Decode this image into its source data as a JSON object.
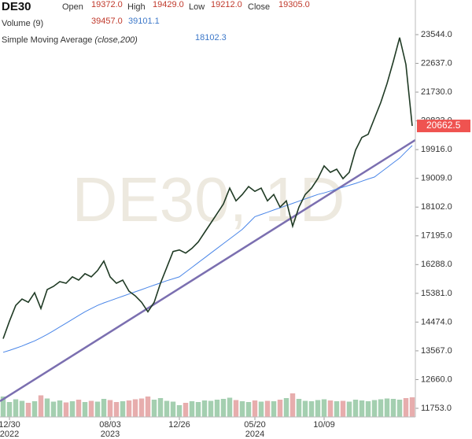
{
  "chart_data": {
    "type": "line",
    "title": "DE30",
    "watermark": "DE30, 1D",
    "ohlc_legend": [
      {
        "name": "Open",
        "value": 19372.0,
        "value_label": "19372.0"
      },
      {
        "name": "High",
        "value": 19429.0,
        "value_label": "19429.0"
      },
      {
        "name": "Low",
        "value": 19212.0,
        "value_label": "19212.0"
      },
      {
        "name": "Close",
        "value": 19305.0,
        "value_label": "19305.0"
      }
    ],
    "volume_legend": {
      "name": "Volume (9)",
      "values": [
        39457.0,
        39101.1
      ],
      "value_labels": [
        "39457.0",
        "39101.1"
      ]
    },
    "sma_legend": {
      "name_prefix": "Simple Moving Average ",
      "name_params": "(close,200)",
      "value": 18102.3
    },
    "categories": [
      null,
      "12/30",
      null,
      null,
      null,
      null,
      null,
      null,
      null,
      null,
      null,
      null,
      null,
      null,
      null,
      null,
      null,
      "08/03",
      null,
      null,
      null,
      null,
      null,
      null,
      null,
      null,
      null,
      null,
      "12/26",
      null,
      null,
      null,
      null,
      null,
      null,
      null,
      null,
      null,
      null,
      null,
      "05/20",
      null,
      null,
      null,
      null,
      null,
      null,
      null,
      null,
      null,
      null,
      "10/09",
      null,
      null,
      null,
      null,
      null,
      null,
      null,
      null,
      null,
      null,
      null,
      null,
      null,
      null
    ],
    "years": [
      null,
      "2022",
      null,
      null,
      null,
      null,
      null,
      null,
      null,
      null,
      null,
      null,
      null,
      null,
      null,
      null,
      null,
      "2023",
      null,
      null,
      null,
      null,
      null,
      null,
      null,
      null,
      null,
      null,
      null,
      null,
      null,
      null,
      null,
      null,
      null,
      null,
      null,
      null,
      null,
      null,
      "2024",
      null,
      null,
      null,
      null,
      null,
      null,
      null,
      null,
      null,
      null,
      null,
      null,
      null,
      null,
      null,
      null,
      null,
      null,
      null,
      null,
      null,
      null,
      null,
      null,
      null
    ],
    "series": [
      {
        "name": "Close",
        "color": "#1f3a24",
        "values": [
          13950,
          14500,
          15000,
          15200,
          15100,
          15400,
          14900,
          15500,
          15600,
          15750,
          15700,
          15900,
          15800,
          16000,
          15900,
          16100,
          16400,
          15900,
          15700,
          15800,
          15450,
          15300,
          15100,
          14800,
          15100,
          15700,
          16200,
          16700,
          16750,
          16650,
          16800,
          17000,
          17300,
          17600,
          17900,
          18200,
          18700,
          18300,
          18500,
          18750,
          18600,
          18700,
          18300,
          18500,
          18100,
          18300,
          17500,
          18100,
          18500,
          18700,
          19000,
          19400,
          19200,
          19300,
          19000,
          19200,
          19900,
          20300,
          20400,
          20900,
          21400,
          22000,
          22700,
          23450,
          22600,
          20662.5
        ]
      },
      {
        "name": "SMA",
        "color": "#4a86e8",
        "values": [
          13520,
          13580,
          13650,
          13720,
          13800,
          13880,
          13980,
          14085,
          14200,
          14320,
          14440,
          14560,
          14680,
          14800,
          14900,
          15000,
          15080,
          15150,
          15220,
          15290,
          15360,
          15430,
          15500,
          15570,
          15640,
          15710,
          15780,
          15840,
          15900,
          16050,
          16200,
          16350,
          16500,
          16650,
          16800,
          16950,
          17100,
          17250,
          17400,
          17600,
          17800,
          17870,
          17940,
          18010,
          18080,
          18150,
          18220,
          18290,
          18360,
          18430,
          18500,
          18550,
          18610,
          18670,
          18730,
          18790,
          18850,
          18920,
          18990,
          19050,
          19200,
          19350,
          19500,
          19650,
          19850,
          20044
        ]
      }
    ],
    "trendline": {
      "color": "#7b6fb0",
      "start": 11977,
      "end": 20218
    },
    "volume": {
      "up_color": "#5aa870",
      "down_color": "#d46a6a",
      "ylim": [
        0,
        100000
      ],
      "values": [
        52000,
        38000,
        45000,
        41000,
        36000,
        40000,
        55000,
        47000,
        39000,
        42000,
        37000,
        40000,
        44000,
        38000,
        41000,
        39000,
        46000,
        43000,
        38000,
        40000,
        42000,
        45000,
        47000,
        52000,
        44000,
        48000,
        41000,
        39000,
        30000,
        36000,
        40000,
        38000,
        42000,
        41000,
        44000,
        46000,
        49000,
        43000,
        40000,
        38000,
        42000,
        39000,
        41000,
        40000,
        44000,
        48000,
        60000,
        46000,
        41000,
        40000,
        43000,
        45000,
        42000,
        40000,
        41000,
        39000,
        44000,
        42000,
        40000,
        43000,
        45000,
        47000,
        46000,
        44000,
        48000,
        50000
      ]
    },
    "last_price": 20662.5,
    "last_color": "#ef5350",
    "ylim": [
      11480,
      24636
    ],
    "yticks": [
      {
        "value": 23544,
        "label": "23544.0"
      },
      {
        "value": 22637,
        "label": "22637.0"
      },
      {
        "value": 21730,
        "label": "21730.0"
      },
      {
        "value": 20823,
        "label": "20823.0"
      },
      {
        "value": 19916,
        "label": "19916.0"
      },
      {
        "value": 19009,
        "label": "19009.0"
      },
      {
        "value": 18102,
        "label": "18102.0"
      },
      {
        "value": 17195,
        "label": "17195.0"
      },
      {
        "value": 16288,
        "label": "16288.0"
      },
      {
        "value": 15381,
        "label": "15381.0"
      },
      {
        "value": 14474,
        "label": "14474.0"
      },
      {
        "value": 13567,
        "label": "13567.0"
      },
      {
        "value": 12660,
        "label": "12660.0"
      },
      {
        "value": 11753,
        "label": "11753.0"
      }
    ],
    "grid": false
  }
}
